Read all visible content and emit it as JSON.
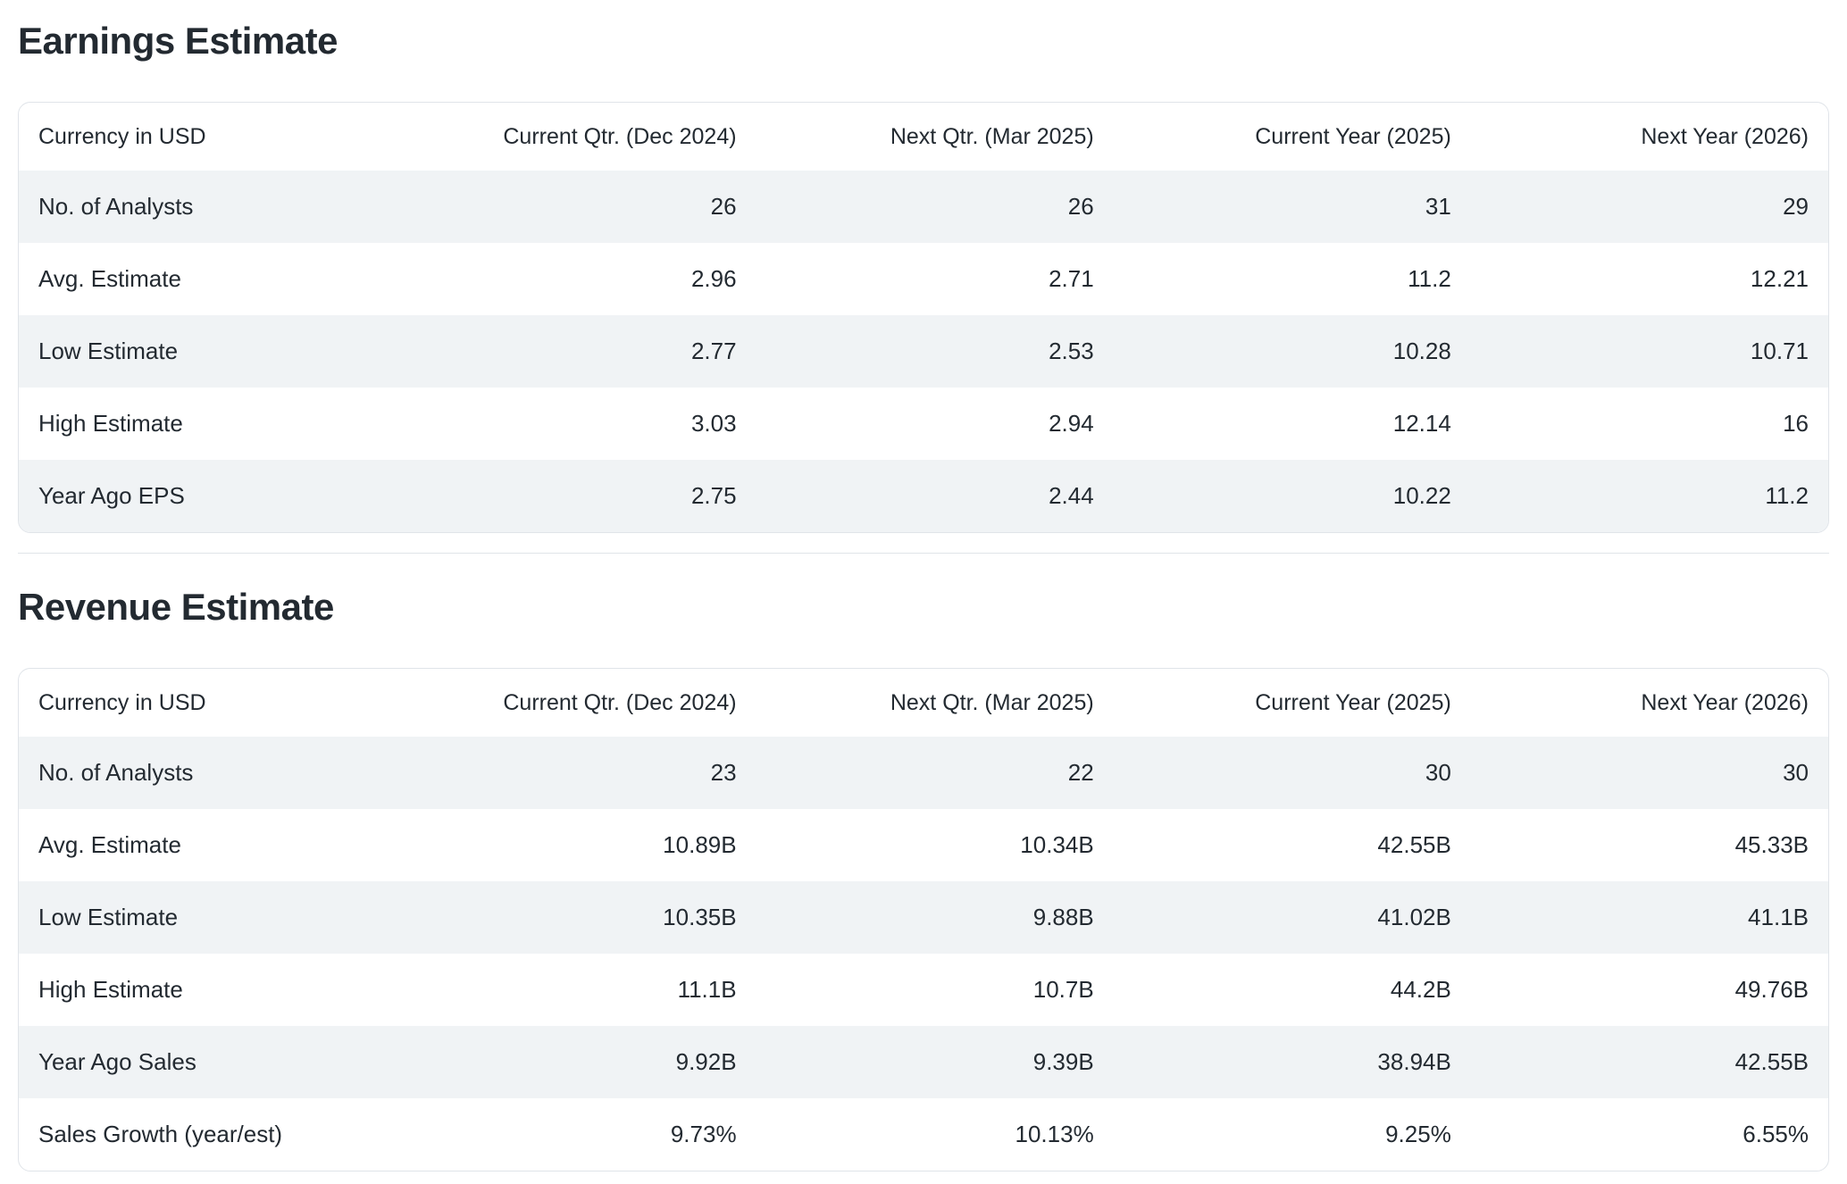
{
  "theme": {
    "text_color": "#232a31",
    "row_stripe_color": "#f0f3f5",
    "card_border_color": "#e0e4e9",
    "background_color": "#ffffff"
  },
  "sections": [
    {
      "title": "Earnings Estimate",
      "table": {
        "headers": [
          "Currency in USD",
          "Current Qtr. (Dec 2024)",
          "Next Qtr. (Mar 2025)",
          "Current Year (2025)",
          "Next Year (2026)"
        ],
        "rows": [
          {
            "label": "No. of Analysts",
            "values": [
              "26",
              "26",
              "31",
              "29"
            ]
          },
          {
            "label": "Avg. Estimate",
            "values": [
              "2.96",
              "2.71",
              "11.2",
              "12.21"
            ]
          },
          {
            "label": "Low Estimate",
            "values": [
              "2.77",
              "2.53",
              "10.28",
              "10.71"
            ]
          },
          {
            "label": "High Estimate",
            "values": [
              "3.03",
              "2.94",
              "12.14",
              "16"
            ]
          },
          {
            "label": "Year Ago EPS",
            "values": [
              "2.75",
              "2.44",
              "10.22",
              "11.2"
            ]
          }
        ]
      }
    },
    {
      "title": "Revenue Estimate",
      "table": {
        "headers": [
          "Currency in USD",
          "Current Qtr. (Dec 2024)",
          "Next Qtr. (Mar 2025)",
          "Current Year (2025)",
          "Next Year (2026)"
        ],
        "rows": [
          {
            "label": "No. of Analysts",
            "values": [
              "23",
              "22",
              "30",
              "30"
            ]
          },
          {
            "label": "Avg. Estimate",
            "values": [
              "10.89B",
              "10.34B",
              "42.55B",
              "45.33B"
            ]
          },
          {
            "label": "Low Estimate",
            "values": [
              "10.35B",
              "9.88B",
              "41.02B",
              "41.1B"
            ]
          },
          {
            "label": "High Estimate",
            "values": [
              "11.1B",
              "10.7B",
              "44.2B",
              "49.76B"
            ]
          },
          {
            "label": "Year Ago Sales",
            "values": [
              "9.92B",
              "9.39B",
              "38.94B",
              "42.55B"
            ]
          },
          {
            "label": "Sales Growth (year/est)",
            "values": [
              "9.73%",
              "10.13%",
              "9.25%",
              "6.55%"
            ]
          }
        ]
      }
    }
  ]
}
